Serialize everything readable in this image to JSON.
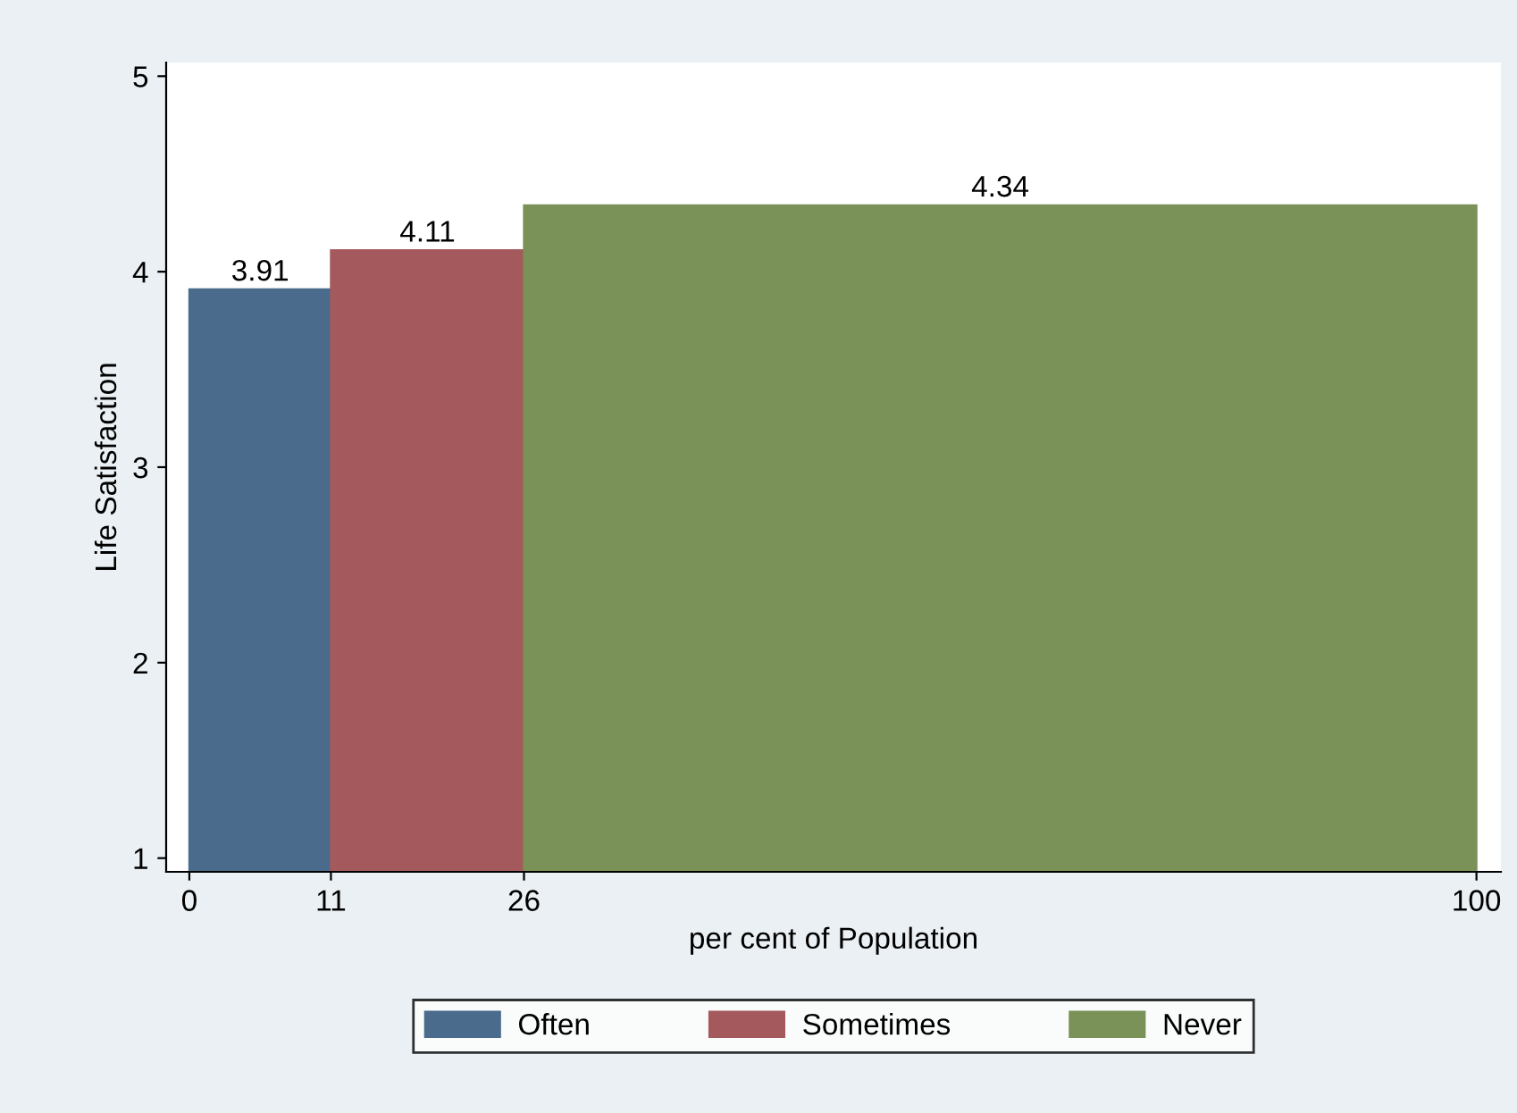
{
  "chart_data": {
    "type": "histogram",
    "xlabel": "per cent of Population",
    "ylabel": "Life Satisfaction",
    "bins": [
      0,
      11,
      26,
      100
    ],
    "xlim": [
      -1.8,
      101.9
    ],
    "xticks": [
      0,
      11,
      26,
      100
    ],
    "ylim": [
      0.93,
      5.07
    ],
    "yticks": [
      1,
      2,
      3,
      4,
      5
    ],
    "grid": false,
    "legend": "bottom",
    "series": [
      {
        "name": "Often",
        "color": "#4a6b8c",
        "values": [
          3.91,
          null,
          null
        ],
        "value_labels": [
          "3.91",
          null,
          null
        ]
      },
      {
        "name": "Sometimes",
        "color": "#a45a5d",
        "values": [
          null,
          4.11,
          null
        ],
        "value_labels": [
          null,
          "4.11",
          null
        ]
      },
      {
        "name": "Never",
        "color": "#7a9157",
        "values": [
          null,
          null,
          4.34
        ],
        "value_labels": [
          null,
          null,
          "4.34"
        ]
      }
    ]
  }
}
